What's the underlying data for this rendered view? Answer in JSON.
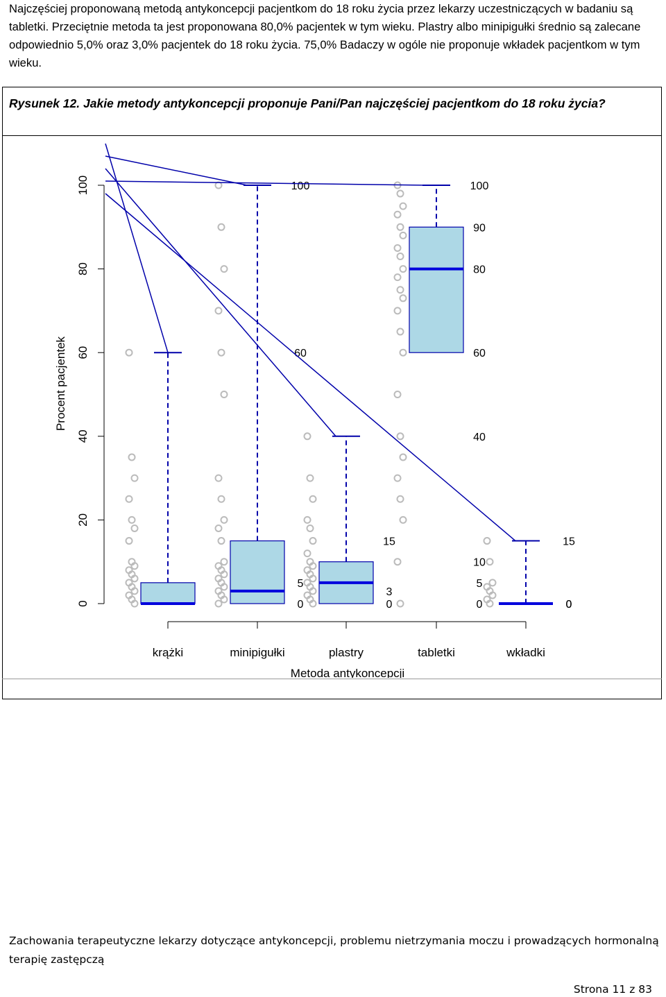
{
  "intro_text": "Najczęściej proponowaną metodą antykoncepcji pacjentkom do 18 roku życia przez lekarzy uczestniczących w badaniu są tabletki. Przeciętnie metoda ta jest proponowana 80,0% pacjentek w tym wieku. Plastry albo minipigułki średnio są zalecane odpowiednio 5,0% oraz 3,0% pacjentek do 18 roku życia. 75,0% Badaczy w ogóle nie proponuje wkładek pacjentkom w tym wieku.",
  "figure_caption": "Rysunek 12. Jakie metody antykoncepcji proponuje Pani/Pan najczęściej pacjentkom do 18 roku życia?",
  "footer_text": "Zachowania terapeutyczne lekarzy dotyczące antykoncepcji, problemu nietrzymania moczu i prowadzących hormonalną terapię zastępczą",
  "page_number": "Strona 11 z 83",
  "colors": {
    "box_fill": "#add8e6",
    "line": "#0000aa",
    "median": "#0000dd",
    "outlier": "#bbbbbb"
  },
  "chart_data": {
    "type": "boxplot",
    "title": "",
    "xlabel": "Metoda antykoncepcji",
    "ylabel": "Procent pacjentek",
    "ylim": [
      0,
      100
    ],
    "yticks": [
      "0",
      "20",
      "40",
      "60",
      "80",
      "100"
    ],
    "categories": [
      "krążki",
      "minipigułki",
      "plastry",
      "tabletki",
      "wkładki"
    ],
    "boxes": [
      {
        "name": "krążki",
        "min": 0,
        "q1": 0,
        "median": 0,
        "q3": 5,
        "max": 60,
        "labels": []
      },
      {
        "name": "minipigułki",
        "min": 0,
        "q1": 0,
        "median": 3,
        "q3": 15,
        "max": 100,
        "labels": [
          {
            "value": 100,
            "text": "100"
          },
          {
            "value": 60,
            "text": "60"
          },
          {
            "value": 5,
            "text": "5"
          },
          {
            "value": 0,
            "text": "0"
          }
        ]
      },
      {
        "name": "plastry",
        "min": 0,
        "q1": 0,
        "median": 5,
        "q3": 10,
        "max": 40,
        "labels": [
          {
            "value": 15,
            "text": "15"
          },
          {
            "value": 3,
            "text": "3"
          },
          {
            "value": 0,
            "text": "0"
          }
        ]
      },
      {
        "name": "tabletki",
        "min": 0,
        "q1": 60,
        "median": 80,
        "q3": 90,
        "max": 100,
        "labels": [
          {
            "value": 100,
            "text": "100"
          },
          {
            "value": 90,
            "text": "90"
          },
          {
            "value": 80,
            "text": "80"
          },
          {
            "value": 60,
            "text": "60"
          },
          {
            "value": 40,
            "text": "40"
          },
          {
            "value": 10,
            "text": "10"
          },
          {
            "value": 5,
            "text": "5"
          },
          {
            "value": 0,
            "text": "0"
          }
        ]
      },
      {
        "name": "wkładki",
        "min": 0,
        "q1": 0,
        "median": 0,
        "q3": 0,
        "max": 15,
        "labels": [
          {
            "value": 0,
            "text": "0"
          },
          {
            "value": 15,
            "text": "15"
          },
          {
            "value": 0,
            "text": "0"
          }
        ]
      }
    ],
    "outliers": [
      [
        60,
        35,
        30,
        25,
        20,
        18,
        15,
        10,
        9,
        8,
        7,
        6,
        5,
        4,
        3,
        2,
        1,
        0
      ],
      [
        100,
        90,
        80,
        70,
        60,
        50,
        30,
        25,
        20,
        18,
        15,
        10,
        9,
        8,
        7,
        6,
        5,
        4,
        3,
        2,
        1,
        0
      ],
      [
        40,
        30,
        25,
        20,
        18,
        15,
        12,
        10,
        9,
        8,
        7,
        6,
        5,
        4,
        3,
        2,
        1,
        0
      ],
      [
        100,
        98,
        95,
        93,
        90,
        88,
        85,
        83,
        80,
        78,
        75,
        73,
        70,
        65,
        60,
        50,
        40,
        35,
        30,
        25,
        20,
        10,
        0
      ],
      [
        15,
        10,
        5,
        4,
        3,
        2,
        1,
        0
      ]
    ]
  }
}
